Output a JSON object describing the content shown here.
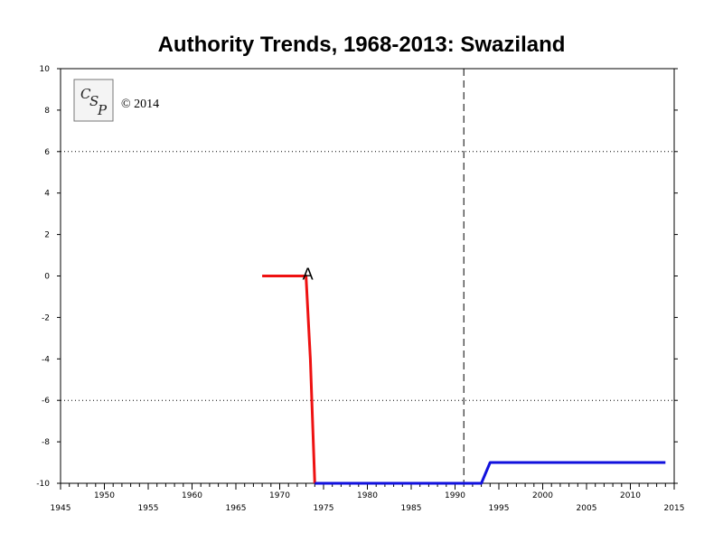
{
  "chart_data": {
    "type": "line",
    "title": "Authority Trends, 1968-2013: Swaziland",
    "xlabel": "",
    "ylabel": "",
    "xlim": [
      1945,
      2015
    ],
    "ylim": [
      -10,
      10
    ],
    "x_ticks": [
      1945,
      1950,
      1955,
      1960,
      1965,
      1970,
      1975,
      1980,
      1985,
      1990,
      1995,
      2000,
      2005,
      2010,
      2015
    ],
    "y_ticks": [
      10,
      8,
      6,
      4,
      2,
      0,
      -2,
      -4,
      -6,
      -8,
      -10
    ],
    "grid": false,
    "reference_lines": {
      "horizontal_dotted": [
        6,
        -6
      ],
      "vertical_dashed": [
        1991
      ]
    },
    "series": [
      {
        "color": "#ee1111",
        "points": [
          [
            1968,
            0
          ],
          [
            1973,
            0
          ],
          [
            1973.5,
            -4
          ],
          [
            1974,
            -10
          ]
        ]
      },
      {
        "color": "#1111dd",
        "points": [
          [
            1974,
            -10
          ],
          [
            1993,
            -10
          ],
          [
            1994,
            -9
          ],
          [
            2014,
            -9
          ]
        ]
      }
    ],
    "annotations": [
      {
        "text": "A",
        "x": 1973,
        "y": 0
      }
    ],
    "copyright": "© 2014",
    "logo_letters": [
      "C",
      "S",
      "P"
    ]
  }
}
